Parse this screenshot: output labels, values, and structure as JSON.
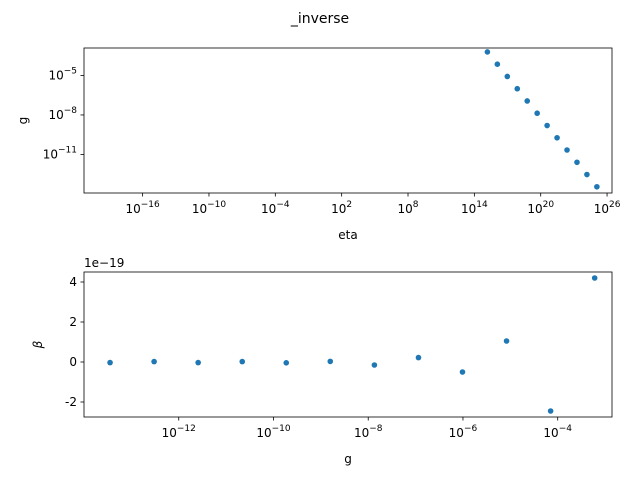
{
  "suptitle": "_inverse",
  "chart_data": [
    {
      "type": "scatter",
      "xlabel": "eta",
      "ylabel": "g",
      "xscale": "log",
      "yscale": "log",
      "x": [
        1510000000000000.0,
        1.2e+16,
        9.55e+16,
        7.59e+17,
        6.03e+18,
        4.79e+19,
        3.8e+20,
        3.02e+21,
        2.4e+22,
        1.91e+23,
        1.51e+24,
        1.2e+25
      ],
      "series": [
        {
          "name": "g",
          "color": "#1f77b4",
          "values": [
            0.000603,
            7.08e-05,
            8.32e-06,
            9.77e-07,
            1.15e-07,
            1.35e-08,
            1.58e-09,
            1.86e-10,
            2.19e-11,
            2.57e-12,
            3.02e-13,
            3.55e-14
          ]
        }
      ],
      "xlim": [
        5e-22,
        2.8e+26
      ],
      "ylim": [
        1.2e-14,
        0.0012
      ],
      "xticks": [
        {
          "value": 1e-16,
          "label": "10−16"
        },
        {
          "value": 1e-10,
          "label": "10−10"
        },
        {
          "value": 0.0001,
          "label": "10−4"
        },
        {
          "value": 100.0,
          "label": "102"
        },
        {
          "value": 100000000.0,
          "label": "108"
        },
        {
          "value": 100000000000000.0,
          "label": "1014"
        },
        {
          "value": 1e+20,
          "label": "1020"
        },
        {
          "value": 1e+26,
          "label": "1026"
        }
      ],
      "yticks": [
        {
          "value": 1e-05,
          "label": "10−5"
        },
        {
          "value": 1e-08,
          "label": "10−8"
        },
        {
          "value": 1e-11,
          "label": "10−11"
        }
      ]
    },
    {
      "type": "scatter",
      "xlabel": "g",
      "ylabel": "β",
      "xscale": "log",
      "yscale": "linear",
      "y_offset_label": "1e−19",
      "x": [
        3.55e-14,
        3.02e-13,
        2.57e-12,
        2.19e-11,
        1.86e-10,
        1.58e-09,
        1.35e-08,
        1.15e-07,
        9.77e-07,
        8.32e-06,
        7.08e-05,
        0.000603
      ],
      "series": [
        {
          "name": "β",
          "color": "#1f77b4",
          "values": [
            -0.03,
            0.02,
            -0.03,
            0.02,
            -0.04,
            0.03,
            -0.15,
            0.22,
            -0.5,
            1.05,
            -2.45,
            4.2
          ]
        }
      ],
      "xlim": [
        1e-14,
        0.0014
      ],
      "ylim": [
        -2.75,
        4.5
      ],
      "xticks": [
        {
          "value": 1e-12,
          "label": "10−12"
        },
        {
          "value": 1e-10,
          "label": "10−10"
        },
        {
          "value": 1e-08,
          "label": "10−8"
        },
        {
          "value": 1e-06,
          "label": "10−6"
        },
        {
          "value": 0.0001,
          "label": "10−4"
        }
      ],
      "yticks": [
        -2,
        0,
        2,
        4
      ]
    }
  ]
}
